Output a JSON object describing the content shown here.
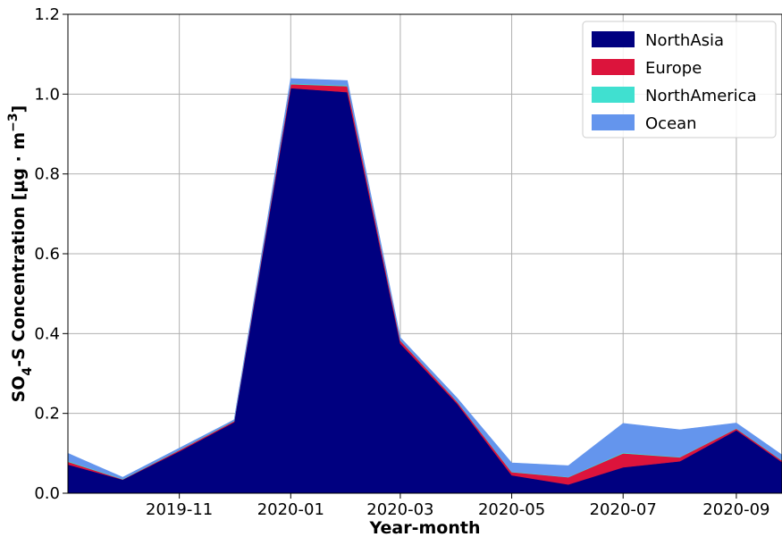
{
  "chart_data": {
    "type": "area",
    "stacked": true,
    "xlabel": "Year-month",
    "ylabel_main": "SO",
    "ylabel_sub": "4",
    "ylabel_rest": "-S Concentration [µg · m",
    "ylabel_sup": "−3",
    "ylabel_close": "]",
    "ylim": [
      0,
      1.2
    ],
    "yticks": [
      "0.0",
      "0.2",
      "0.4",
      "0.6",
      "0.8",
      "1.0",
      "1.2"
    ],
    "xticks": [
      "2019-11",
      "2020-01",
      "2020-03",
      "2020-05",
      "2020-07",
      "2020-09"
    ],
    "x": [
      "2019-09-01",
      "2019-10-01",
      "2019-11-01",
      "2019-12-01",
      "2020-01-01",
      "2020-02-01",
      "2020-03-01",
      "2020-04-01",
      "2020-05-01",
      "2020-06-01",
      "2020-07-01",
      "2020-08-01",
      "2020-09-01",
      "2020-10-01"
    ],
    "x_range": [
      "2019-09-01",
      "2020-09-26"
    ],
    "grid": true,
    "legend_position": "top-right",
    "series": [
      {
        "name": "NorthAsia",
        "color": "#000080",
        "values": [
          0.072,
          0.034,
          0.105,
          0.178,
          1.015,
          1.005,
          0.375,
          0.225,
          0.045,
          0.022,
          0.065,
          0.08,
          0.158,
          0.062
        ]
      },
      {
        "name": "Europe",
        "color": "#dc143c",
        "values": [
          0.007,
          0.001,
          0.003,
          0.003,
          0.01,
          0.015,
          0.008,
          0.005,
          0.008,
          0.018,
          0.035,
          0.01,
          0.004,
          0.004
        ]
      },
      {
        "name": "NorthAmerica",
        "color": "#40e0d0",
        "values": [
          0.002,
          0.001,
          0.001,
          0.001,
          0.002,
          0.002,
          0.001,
          0.001,
          0.001,
          0.001,
          0.002,
          0.001,
          0.001,
          0.001
        ]
      },
      {
        "name": "Ocean",
        "color": "#6495ed",
        "values": [
          0.019,
          0.004,
          0.004,
          0.002,
          0.012,
          0.012,
          0.006,
          0.008,
          0.022,
          0.028,
          0.073,
          0.068,
          0.013,
          0.013
        ]
      }
    ]
  }
}
